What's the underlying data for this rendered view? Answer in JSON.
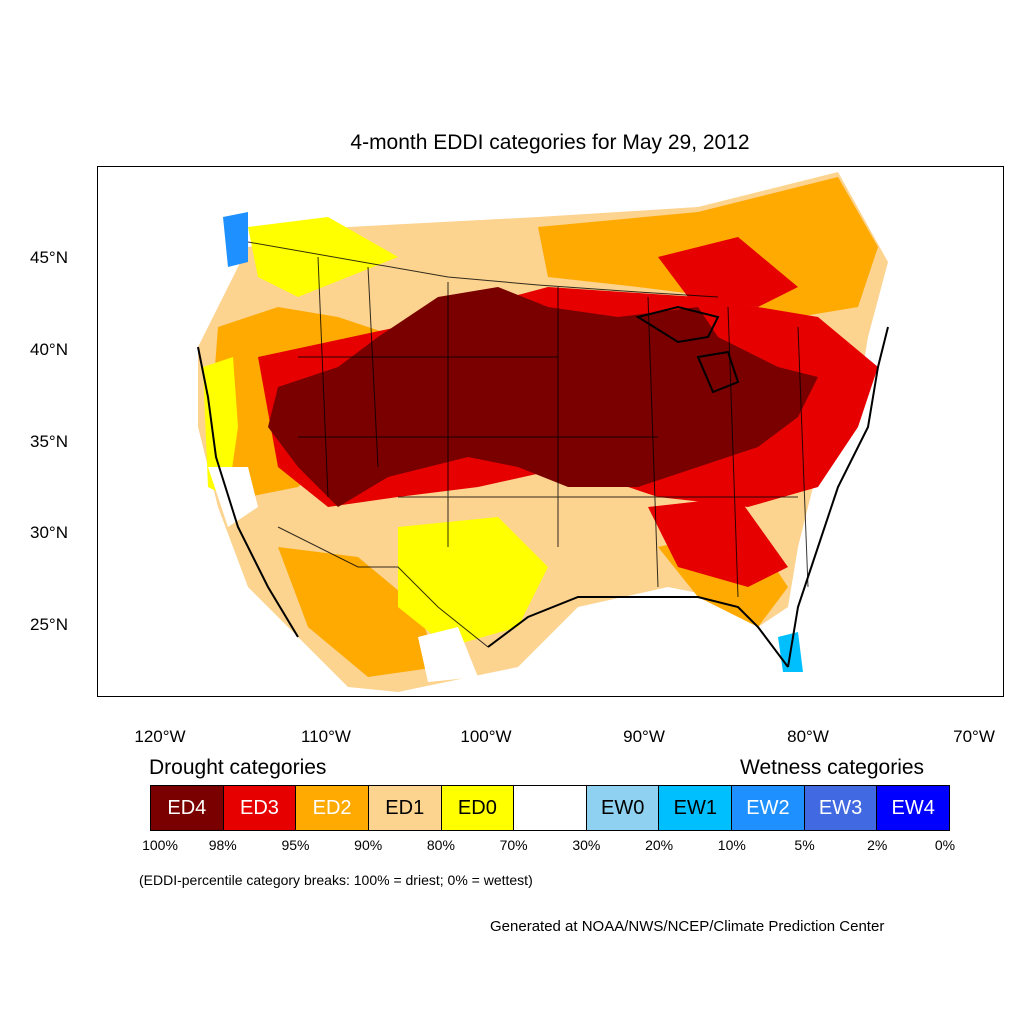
{
  "title": "4-month EDDI categories for May 29, 2012",
  "lat_ticks": [
    "45°N",
    "40°N",
    "35°N",
    "30°N",
    "25°N"
  ],
  "lon_ticks": [
    "120°W",
    "110°W",
    "100°W",
    "90°W",
    "80°W",
    "70°W"
  ],
  "drought_label": "Drought categories",
  "wetness_label": "Wetness categories",
  "legend": [
    {
      "label": "ED4",
      "color": "#7a0000",
      "text_color": "#ffffff"
    },
    {
      "label": "ED3",
      "color": "#e60000",
      "text_color": "#ffffff"
    },
    {
      "label": "ED2",
      "color": "#ffaa00",
      "text_color": "#ffffff"
    },
    {
      "label": "ED1",
      "color": "#fcd38f",
      "text_color": "#000000"
    },
    {
      "label": "ED0",
      "color": "#ffff00",
      "text_color": "#000000"
    },
    {
      "label": "",
      "color": "#ffffff",
      "text_color": "#000000"
    },
    {
      "label": "EW0",
      "color": "#8fd1f0",
      "text_color": "#000000"
    },
    {
      "label": "EW1",
      "color": "#00bfff",
      "text_color": "#000000"
    },
    {
      "label": "EW2",
      "color": "#1e90ff",
      "text_color": "#ffffff"
    },
    {
      "label": "EW3",
      "color": "#4169e1",
      "text_color": "#ffffff"
    },
    {
      "label": "EW4",
      "color": "#0000ff",
      "text_color": "#ffffff"
    }
  ],
  "percent_breaks": [
    "100%",
    "98%",
    "95%",
    "90%",
    "80%",
    "70%",
    "30%",
    "20%",
    "10%",
    "5%",
    "2%",
    "0%"
  ],
  "note": "(EDDI-percentile category breaks: 100% = driest; 0% = wettest)",
  "credit": "Generated at NOAA/NWS/NCEP/Climate Prediction Center"
}
